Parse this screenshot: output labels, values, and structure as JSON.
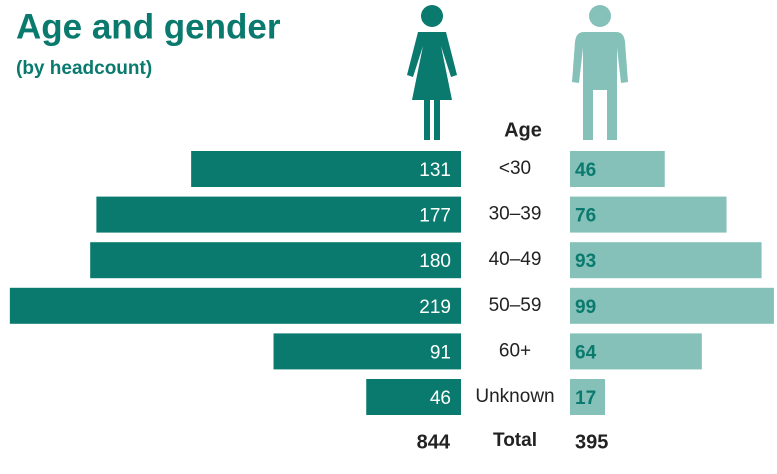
{
  "chart_data": {
    "type": "butterfly",
    "title": "Age and gender",
    "subtitle": "(by headcount)",
    "category_header": "Age",
    "categories": [
      "<30",
      "30–39",
      "40–49",
      "50–59",
      "60+",
      "Unknown"
    ],
    "series": [
      {
        "color": "#0a7a6e",
        "values": [
          131,
          177,
          180,
          219,
          91,
          46
        ],
        "total": 844
      },
      {
        "color": "#86c1b9",
        "values": [
          46,
          76,
          93,
          99,
          64,
          17
        ],
        "total": 395
      }
    ],
    "total_label": "Total"
  }
}
